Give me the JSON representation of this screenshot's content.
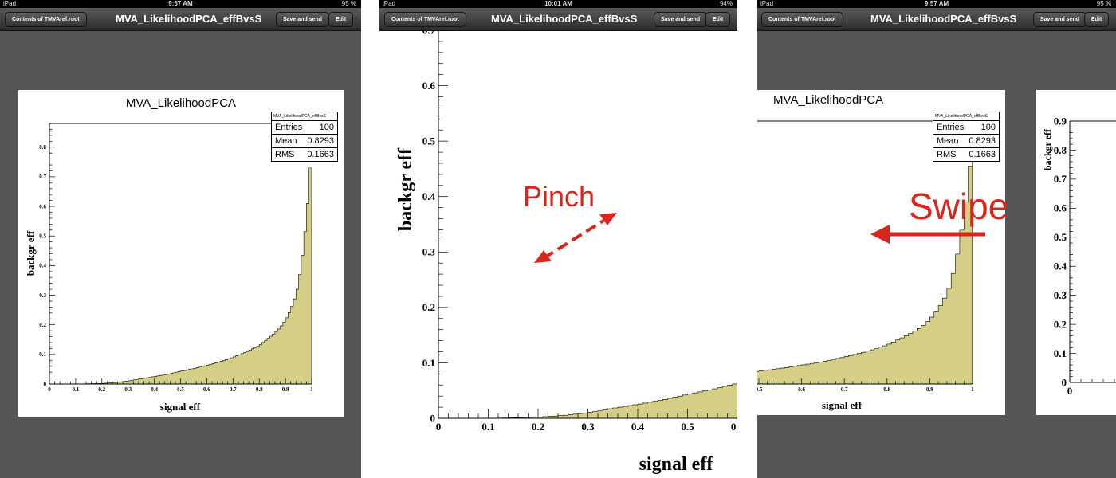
{
  "status_bar": [
    {
      "device": "iPad",
      "time": "9:57 AM",
      "battery": "95 %"
    },
    {
      "device": "iPad",
      "time": "10:01 AM",
      "battery": "94%"
    },
    {
      "device": "iPad",
      "time": "9:57 AM",
      "battery": "95 %"
    }
  ],
  "nav": {
    "back_label": "Contents of TMVAref.root",
    "title": "MVA_LikelihoodPCA_effBvsS",
    "save_label": "Save and send",
    "edit_label": "Edit"
  },
  "histogram": {
    "title": "MVA_LikelihoodPCA",
    "stats_title": "MVA_LikelihoodPCA_effBvsS",
    "stats": [
      {
        "label": "Entries",
        "value": "100"
      },
      {
        "label": "Mean",
        "value": "0.8293"
      },
      {
        "label": "RMS",
        "value": "0.1663"
      }
    ]
  },
  "gestures": {
    "pinch": "Pinch",
    "swipe": "Swipe"
  },
  "chart_data": {
    "type": "area",
    "title": "MVA_LikelihoodPCA",
    "xlabel": "signal eff",
    "ylabel": "backgr eff",
    "xlim": [
      0,
      1
    ],
    "ylim": [
      0,
      0.88
    ],
    "fill_color": "#d4ce87",
    "x": [
      0.0,
      0.1,
      0.2,
      0.25,
      0.3,
      0.35,
      0.4,
      0.45,
      0.5,
      0.55,
      0.6,
      0.65,
      0.7,
      0.75,
      0.8,
      0.85,
      0.88,
      0.9,
      0.92,
      0.94,
      0.95,
      0.96,
      0.97,
      0.98,
      0.99,
      1.0
    ],
    "y": [
      0.0,
      0.0,
      0.002,
      0.005,
      0.01,
      0.018,
      0.025,
      0.033,
      0.043,
      0.052,
      0.063,
      0.075,
      0.09,
      0.108,
      0.13,
      0.165,
      0.19,
      0.215,
      0.25,
      0.3,
      0.34,
      0.4,
      0.47,
      0.56,
      0.66,
      0.8
    ]
  }
}
